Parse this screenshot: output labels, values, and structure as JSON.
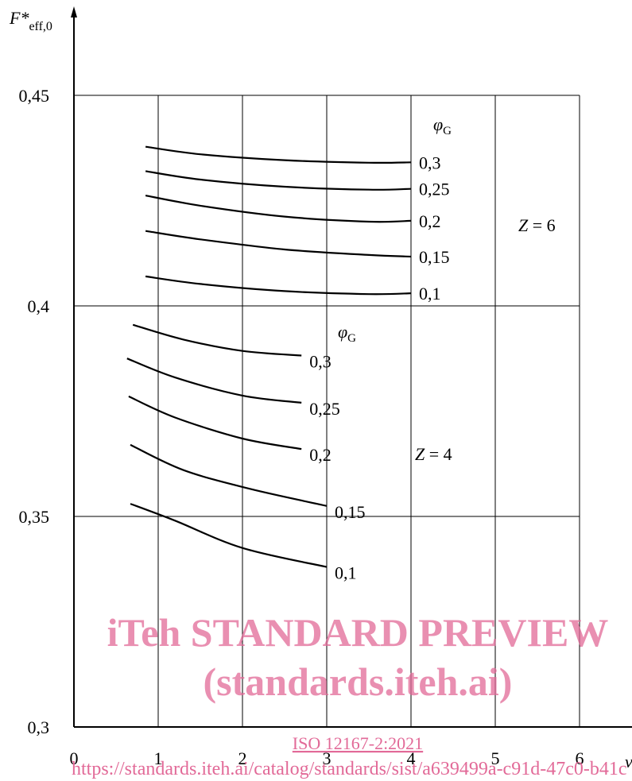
{
  "chart_data": {
    "type": "line",
    "ylabel_main": "F*",
    "ylabel_sub": "eff,0",
    "xlabel": "ν",
    "xlim": [
      0,
      6
    ],
    "ylim": [
      0.3,
      0.45
    ],
    "x_tick_labels": [
      "0",
      "1",
      "2",
      "3",
      "4",
      "5",
      "6"
    ],
    "y_tick_labels": [
      "0,3",
      "0,35",
      "0,4",
      "0,45"
    ],
    "grid": true,
    "groups": [
      {
        "label": "Z = 6",
        "legend_title": "φG",
        "series": [
          {
            "name": "0,3",
            "x": [
              0.85,
              1.5,
              2.5,
              3.5,
              4.0
            ],
            "y": [
              0.4378,
              0.436,
              0.4346,
              0.434,
              0.4341
            ]
          },
          {
            "name": "0,25",
            "x": [
              0.85,
              1.5,
              2.5,
              3.5,
              4.0
            ],
            "y": [
              0.432,
              0.43,
              0.4283,
              0.4276,
              0.4278
            ]
          },
          {
            "name": "0,2",
            "x": [
              0.85,
              1.5,
              2.5,
              3.5,
              4.0
            ],
            "y": [
              0.4262,
              0.4238,
              0.4212,
              0.42,
              0.4202
            ]
          },
          {
            "name": "0,15",
            "x": [
              0.85,
              1.5,
              2.5,
              3.5,
              4.0
            ],
            "y": [
              0.4178,
              0.4158,
              0.4134,
              0.4121,
              0.4117
            ]
          },
          {
            "name": "0,1",
            "x": [
              0.85,
              1.5,
              2.5,
              3.5,
              4.0
            ],
            "y": [
              0.407,
              0.4052,
              0.4035,
              0.4028,
              0.403
            ]
          }
        ]
      },
      {
        "label": "Z = 4",
        "legend_title": "φG",
        "series": [
          {
            "name": "0,3",
            "x": [
              0.7,
              1.3,
              2.0,
              2.7
            ],
            "y": [
              0.3955,
              0.392,
              0.3893,
              0.3882
            ]
          },
          {
            "name": "0,25",
            "x": [
              0.63,
              1.2,
              2.0,
              2.7
            ],
            "y": [
              0.3875,
              0.383,
              0.3787,
              0.377
            ]
          },
          {
            "name": "0,2",
            "x": [
              0.65,
              1.2,
              2.0,
              2.7
            ],
            "y": [
              0.3785,
              0.3735,
              0.3685,
              0.366
            ]
          },
          {
            "name": "0,15",
            "x": [
              0.67,
              1.3,
              2.1,
              3.0
            ],
            "y": [
              0.367,
              0.361,
              0.3565,
              0.3525
            ]
          },
          {
            "name": "0,1",
            "x": [
              0.67,
              1.2,
              2.0,
              3.0
            ],
            "y": [
              0.353,
              0.349,
              0.3425,
              0.338
            ]
          }
        ]
      }
    ]
  },
  "watermark": {
    "title": "iTeh STANDARD PREVIEW",
    "subtitle": "(standards.iteh.ai)",
    "doc_link": "ISO 12167-2:2021",
    "url": "https://standards.iteh.ai/catalog/standards/sist/a639499a-c91d-47c0-b41c",
    "color": "#e26a98"
  }
}
